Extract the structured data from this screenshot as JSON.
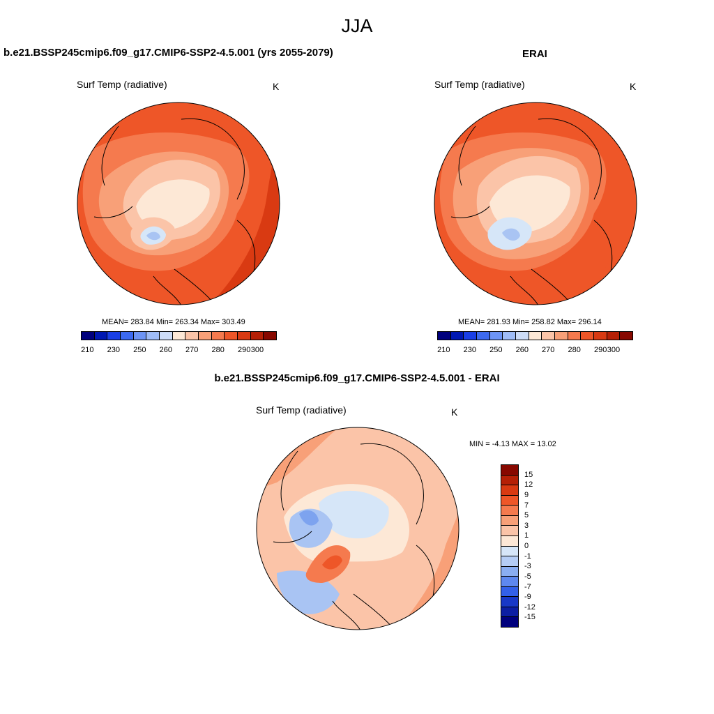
{
  "title": "JJA",
  "model_panel": {
    "title": "b.e21.BSSP245cmip6.f09_g17.CMIP6-SSP2-4.5.001 (yrs 2055-2079)",
    "variable": "Surf Temp (radiative)",
    "units": "K",
    "stats": "MEAN= 283.84  Min= 263.34  Max= 303.49"
  },
  "obs_panel": {
    "title": "ERAI",
    "variable": "Surf Temp (radiative)",
    "units": "K",
    "stats": "MEAN= 281.93  Min= 258.82  Max= 296.14"
  },
  "diff_panel": {
    "title": "b.e21.BSSP245cmip6.f09_g17.CMIP6-SSP2-4.5.001 - ERAI",
    "variable": "Surf Temp (radiative)",
    "units": "K",
    "stats": "MIN =  -4.13 MAX =  13.02"
  },
  "abs_colorbar": {
    "labels": [
      "210",
      "230",
      "250",
      "260",
      "270",
      "280",
      "290",
      "300"
    ],
    "colors": [
      "#00007d",
      "#0018b3",
      "#1a3fe6",
      "#3d6af0",
      "#6d94f5",
      "#9fbcf7",
      "#cddcf7",
      "#fde8d6",
      "#fbc4a8",
      "#f8a078",
      "#f57a4e",
      "#ee5628",
      "#d93a12",
      "#b52006",
      "#870800"
    ]
  },
  "diff_colorbar": {
    "labels": [
      "15",
      "12",
      "9",
      "7",
      "5",
      "3",
      "1",
      "0",
      "-1",
      "-3",
      "-5",
      "-7",
      "-9",
      "-12",
      "-15"
    ],
    "colors": [
      "#870800",
      "#b52006",
      "#d93a12",
      "#ee5628",
      "#f57a4e",
      "#f8a078",
      "#fbc4a8",
      "#fde8d6",
      "#d6e6f8",
      "#b5cdf5",
      "#8aaef2",
      "#5e88ef",
      "#3360e8",
      "#1838c7",
      "#0c1ea3",
      "#00007d"
    ]
  },
  "map_colors": {
    "warm_dark": "#d93a12",
    "warm": "#ee5628",
    "warm_mid": "#f57a4e",
    "warm_light": "#f8a078",
    "peach": "#fbc4a8",
    "cream": "#fde8d6",
    "pale_blue": "#d6e6f8",
    "light_blue": "#a9c4f3",
    "mid_blue": "#7da3ef"
  }
}
